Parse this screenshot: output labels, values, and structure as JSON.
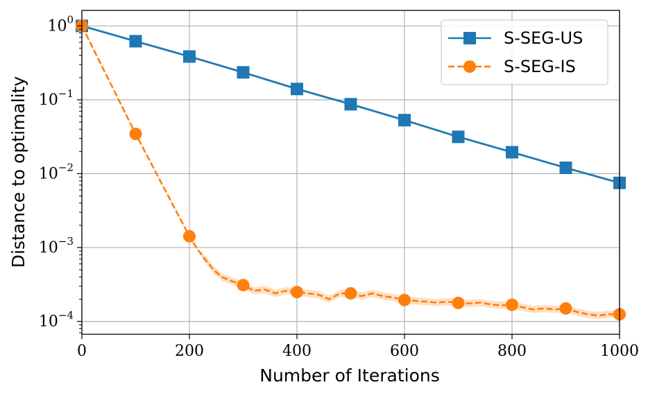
{
  "chart_data": {
    "type": "line",
    "xlabel": "Number of Iterations",
    "ylabel": "Distance to optimality",
    "xlim": [
      0,
      1000
    ],
    "ylim": [
      6.7e-05,
      1.62
    ],
    "yscale": "log",
    "grid": true,
    "legend_position": "top-right",
    "x_ticks": [
      "0",
      "200",
      "400",
      "600",
      "800",
      "1000"
    ],
    "y_ticks": [
      {
        "base": "10",
        "exp": "0",
        "value": 1
      },
      {
        "base": "10",
        "exp": "−1",
        "value": 0.1
      },
      {
        "base": "10",
        "exp": "−2",
        "value": 0.01
      },
      {
        "base": "10",
        "exp": "−3",
        "value": 0.001
      },
      {
        "base": "10",
        "exp": "−4",
        "value": 0.0001
      }
    ],
    "series": [
      {
        "name": "S-SEG-US",
        "color": "#1f77b4",
        "style": "solid",
        "marker": "square",
        "x": [
          0,
          100,
          200,
          300,
          400,
          500,
          600,
          700,
          800,
          900,
          1000
        ],
        "y": [
          1.0,
          0.62,
          0.385,
          0.235,
          0.14,
          0.087,
          0.053,
          0.0315,
          0.0195,
          0.012,
          0.0075
        ]
      },
      {
        "name": "S-SEG-IS",
        "color": "#ff7f0e",
        "style": "dashed",
        "marker": "circle",
        "x": [
          0,
          100,
          200,
          300,
          400,
          500,
          600,
          700,
          800,
          900,
          1000
        ],
        "y": [
          1.0,
          0.0345,
          0.00142,
          0.00031,
          0.00025,
          0.00024,
          0.000195,
          0.000178,
          0.000168,
          0.00015,
          0.000125
        ]
      }
    ],
    "is_curve": {
      "x": [
        0,
        100,
        200,
        215,
        230,
        245,
        260,
        275,
        300,
        320,
        340,
        360,
        380,
        400,
        420,
        440,
        460,
        480,
        500,
        520,
        540,
        560,
        580,
        600,
        620,
        640,
        660,
        680,
        700,
        720,
        740,
        760,
        780,
        800,
        820,
        840,
        860,
        880,
        900,
        920,
        940,
        960,
        980,
        1000
      ],
      "y": [
        1.0,
        0.0345,
        0.00142,
        0.00095,
        0.00068,
        0.0005,
        0.0004,
        0.00036,
        0.00031,
        0.00026,
        0.00027,
        0.00024,
        0.00026,
        0.00025,
        0.00024,
        0.00023,
        0.0002,
        0.00024,
        0.00024,
        0.00022,
        0.00024,
        0.00022,
        0.00021,
        0.000195,
        0.00019,
        0.000185,
        0.00018,
        0.000185,
        0.000178,
        0.000175,
        0.00018,
        0.00017,
        0.000165,
        0.000168,
        0.000155,
        0.000145,
        0.00015,
        0.000145,
        0.00015,
        0.000135,
        0.000125,
        0.00012,
        0.000125,
        0.000125
      ]
    }
  }
}
